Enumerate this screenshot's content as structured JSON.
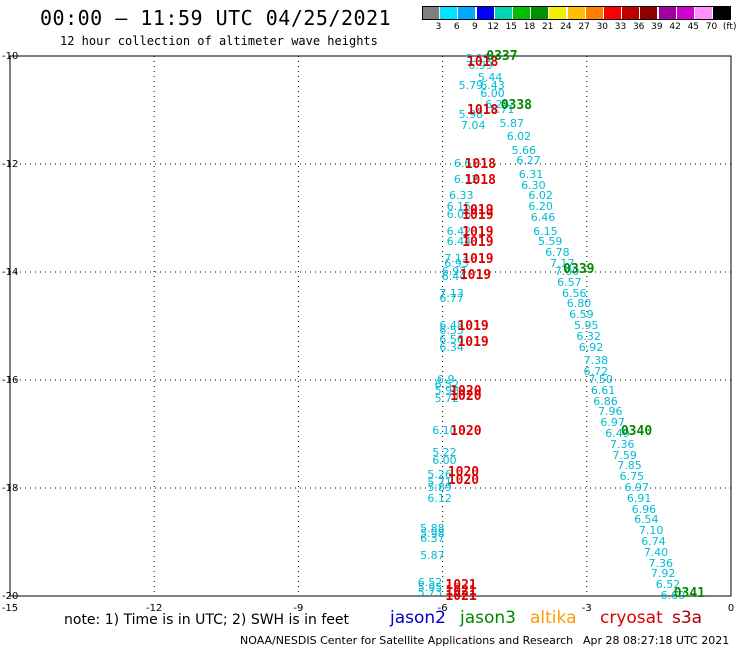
{
  "header": {
    "title": "00:00 – 11:59 UTC 04/25/2021",
    "subtitle": "12 hour collection of altimeter wave heights"
  },
  "colorbar": {
    "labels": [
      "3",
      "6",
      "9",
      "12",
      "15",
      "18",
      "21",
      "24",
      "27",
      "30",
      "33",
      "36",
      "39",
      "42",
      "45",
      "70",
      "(ft)"
    ],
    "colors": [
      "#808080",
      "#00e5ff",
      "#00a8ff",
      "#0000ff",
      "#00d7b0",
      "#00c000",
      "#009000",
      "#f0f000",
      "#ffc000",
      "#ff8000",
      "#ff0000",
      "#c00000",
      "#900000",
      "#a000a0",
      "#d000d0",
      "#ff90ff",
      "#000000"
    ]
  },
  "footer": {
    "note": "note: 1) Time is in UTC; 2) SWH is in feet",
    "satellites": [
      {
        "name": "jason2",
        "color": "#0000cc"
      },
      {
        "name": "jason3",
        "color": "#008800"
      },
      {
        "name": "altika",
        "color": "#ff9900"
      },
      {
        "name": "cryosat",
        "color": "#dd0000"
      },
      {
        "name": "s3a",
        "color": "#aa0000"
      }
    ],
    "credit": "NOAA/NESDIS Center for Satellite Applications and Research",
    "timestamp": "Apr 28 08:27:18 UTC 2021"
  },
  "chart_data": {
    "type": "scatter",
    "title": "00:00 – 11:59 UTC 04/25/2021",
    "xlabel": "",
    "ylabel": "",
    "xlim": [
      -15,
      0
    ],
    "ylim": [
      -20,
      -10
    ],
    "x_ticks": [
      -15,
      -12,
      -9,
      -6,
      -3,
      0
    ],
    "y_ticks": [
      -10,
      -12,
      -14,
      -16,
      -18,
      -20
    ],
    "x_tick_labels": [
      "-15",
      "-12",
      "-9",
      "-6",
      "-3",
      "0"
    ],
    "y_tick_labels": [
      "-10",
      "-12",
      "-14",
      "-16",
      "-18",
      "-20"
    ],
    "grid": true,
    "track_cryosat": {
      "color": "#dd0000",
      "points": [
        {
          "x": -5.2,
          "y": -10.12,
          "v": "1018"
        },
        {
          "x": -5.2,
          "y": -11.0,
          "v": "1018"
        },
        {
          "x": -5.25,
          "y": -12.0,
          "v": "1018"
        },
        {
          "x": -5.25,
          "y": -12.3,
          "v": "1018"
        },
        {
          "x": -5.3,
          "y": -12.85,
          "v": "1019"
        },
        {
          "x": -5.3,
          "y": -12.95,
          "v": "1019"
        },
        {
          "x": -5.3,
          "y": -13.25,
          "v": "1019"
        },
        {
          "x": -5.3,
          "y": -13.45,
          "v": "1019"
        },
        {
          "x": -5.3,
          "y": -13.75,
          "v": "1019"
        },
        {
          "x": -5.35,
          "y": -14.05,
          "v": "1019"
        },
        {
          "x": -5.4,
          "y": -15.0,
          "v": "1019"
        },
        {
          "x": -5.4,
          "y": -15.3,
          "v": "1019"
        },
        {
          "x": -5.55,
          "y": -16.2,
          "v": "1020"
        },
        {
          "x": -5.55,
          "y": -16.3,
          "v": "1020"
        },
        {
          "x": -5.55,
          "y": -16.95,
          "v": "1020"
        },
        {
          "x": -5.6,
          "y": -17.7,
          "v": "1020"
        },
        {
          "x": -5.6,
          "y": -17.85,
          "v": "1020"
        },
        {
          "x": -5.65,
          "y": -19.8,
          "v": "1021"
        },
        {
          "x": -5.65,
          "y": -19.9,
          "v": "1021"
        },
        {
          "x": -5.65,
          "y": -20.0,
          "v": "1021"
        }
      ]
    },
    "track_jason3": {
      "color": "#008800",
      "points": [
        {
          "x": -4.8,
          "y": -10.0,
          "v": "0337"
        },
        {
          "x": -4.5,
          "y": -10.9,
          "v": "0338"
        },
        {
          "x": -3.2,
          "y": -13.95,
          "v": "0339"
        },
        {
          "x": -2.0,
          "y": -16.95,
          "v": "0340"
        },
        {
          "x": -0.9,
          "y": -19.95,
          "v": "0341"
        }
      ]
    },
    "swh_descending": {
      "color": "#00bcd4",
      "points": [
        {
          "x": -5.35,
          "y": -10.05,
          "v": "5.13"
        },
        {
          "x": -5.3,
          "y": -10.18,
          "v": "6.99"
        },
        {
          "x": -5.1,
          "y": -10.4,
          "v": "5.44"
        },
        {
          "x": -5.05,
          "y": -10.55,
          "v": "6.43"
        },
        {
          "x": -5.05,
          "y": -10.7,
          "v": "6.00"
        },
        {
          "x": -4.95,
          "y": -10.9,
          "v": "6.25"
        },
        {
          "x": -4.85,
          "y": -11.0,
          "v": "5.71"
        },
        {
          "x": -4.65,
          "y": -11.25,
          "v": "5.87"
        },
        {
          "x": -4.5,
          "y": -11.5,
          "v": "6.02"
        },
        {
          "x": -4.4,
          "y": -11.75,
          "v": "5.66"
        },
        {
          "x": -4.3,
          "y": -11.95,
          "v": "6.27"
        },
        {
          "x": -4.25,
          "y": -12.2,
          "v": "6.31"
        },
        {
          "x": -4.2,
          "y": -12.4,
          "v": "6.30"
        },
        {
          "x": -4.05,
          "y": -12.6,
          "v": "6.02"
        },
        {
          "x": -4.05,
          "y": -12.8,
          "v": "6.20"
        },
        {
          "x": -4.0,
          "y": -13.0,
          "v": "6.46"
        },
        {
          "x": -3.95,
          "y": -13.25,
          "v": "6.15"
        },
        {
          "x": -3.85,
          "y": -13.45,
          "v": "5.59"
        },
        {
          "x": -3.7,
          "y": -13.65,
          "v": "6.78"
        },
        {
          "x": -3.6,
          "y": -13.85,
          "v": "7.17"
        },
        {
          "x": -3.5,
          "y": -14.0,
          "v": "7.00"
        },
        {
          "x": -3.45,
          "y": -14.2,
          "v": "6.57"
        },
        {
          "x": -3.35,
          "y": -14.4,
          "v": "6.56"
        },
        {
          "x": -3.25,
          "y": -14.6,
          "v": "6.80"
        },
        {
          "x": -3.2,
          "y": -14.8,
          "v": "6.59"
        },
        {
          "x": -3.1,
          "y": -15.0,
          "v": "5.95"
        },
        {
          "x": -3.05,
          "y": -15.2,
          "v": "6.32"
        },
        {
          "x": -3.0,
          "y": -15.4,
          "v": "6.92"
        },
        {
          "x": -2.9,
          "y": -15.65,
          "v": "7.38"
        },
        {
          "x": -2.9,
          "y": -15.85,
          "v": "6.72"
        },
        {
          "x": -2.8,
          "y": -16.0,
          "v": "7.50"
        },
        {
          "x": -2.75,
          "y": -16.2,
          "v": "6.61"
        },
        {
          "x": -2.7,
          "y": -16.4,
          "v": "6.86"
        },
        {
          "x": -2.6,
          "y": -16.6,
          "v": "7.96"
        },
        {
          "x": -2.55,
          "y": -16.8,
          "v": "6.97"
        },
        {
          "x": -2.45,
          "y": -17.0,
          "v": "6.49"
        },
        {
          "x": -2.35,
          "y": -17.2,
          "v": "7.36"
        },
        {
          "x": -2.3,
          "y": -17.4,
          "v": "7.59"
        },
        {
          "x": -2.2,
          "y": -17.6,
          "v": "7.85"
        },
        {
          "x": -2.15,
          "y": -17.8,
          "v": "6.75"
        },
        {
          "x": -2.05,
          "y": -18.0,
          "v": "6.97"
        },
        {
          "x": -2.0,
          "y": -18.2,
          "v": "6.91"
        },
        {
          "x": -1.9,
          "y": -18.4,
          "v": "6.96"
        },
        {
          "x": -1.85,
          "y": -18.6,
          "v": "6.54"
        },
        {
          "x": -1.75,
          "y": -18.8,
          "v": "7.10"
        },
        {
          "x": -1.7,
          "y": -19.0,
          "v": "6.74"
        },
        {
          "x": -1.65,
          "y": -19.2,
          "v": "7.40"
        },
        {
          "x": -1.55,
          "y": -19.4,
          "v": "7.36"
        },
        {
          "x": -1.5,
          "y": -19.6,
          "v": "7.92"
        },
        {
          "x": -1.4,
          "y": -19.8,
          "v": "6.52"
        },
        {
          "x": -1.3,
          "y": -20.0,
          "v": "6.60"
        }
      ]
    },
    "swh_cryosat_track": {
      "color": "#00bcd4",
      "points": [
        {
          "x": -5.5,
          "y": -10.55,
          "v": "5.79"
        },
        {
          "x": -5.5,
          "y": -11.1,
          "v": "5.98"
        },
        {
          "x": -5.45,
          "y": -11.3,
          "v": "7.04"
        },
        {
          "x": -5.6,
          "y": -12.0,
          "v": "6.61"
        },
        {
          "x": -5.6,
          "y": -12.3,
          "v": "6.12"
        },
        {
          "x": -5.7,
          "y": -12.6,
          "v": "6.33"
        },
        {
          "x": -5.75,
          "y": -12.8,
          "v": "6.15"
        },
        {
          "x": -5.75,
          "y": -12.95,
          "v": "6.06"
        },
        {
          "x": -5.75,
          "y": -13.25,
          "v": "6.42"
        },
        {
          "x": -5.75,
          "y": -13.45,
          "v": "6.44"
        },
        {
          "x": -5.8,
          "y": -13.75,
          "v": "7.13"
        },
        {
          "x": -5.8,
          "y": -13.85,
          "v": "6.93"
        },
        {
          "x": -5.85,
          "y": -14.0,
          "v": "6.97"
        },
        {
          "x": -5.85,
          "y": -14.1,
          "v": "6.44"
        },
        {
          "x": -5.9,
          "y": -14.4,
          "v": "7.13"
        },
        {
          "x": -5.9,
          "y": -14.5,
          "v": "6.77"
        },
        {
          "x": -5.9,
          "y": -15.0,
          "v": "6.48"
        },
        {
          "x": -5.9,
          "y": -15.1,
          "v": "6.55"
        },
        {
          "x": -5.9,
          "y": -15.25,
          "v": "6.56"
        },
        {
          "x": -5.9,
          "y": -15.4,
          "v": "6.34"
        },
        {
          "x": -5.95,
          "y": -16.0,
          "v": "6.9"
        },
        {
          "x": -6.0,
          "y": -16.1,
          "v": "6.52"
        },
        {
          "x": -6.0,
          "y": -16.2,
          "v": "5.98"
        },
        {
          "x": -6.0,
          "y": -16.35,
          "v": "5.72"
        },
        {
          "x": -6.05,
          "y": -16.95,
          "v": "6.10"
        },
        {
          "x": -6.05,
          "y": -17.35,
          "v": "5.22"
        },
        {
          "x": -6.05,
          "y": -17.5,
          "v": "6.00"
        },
        {
          "x": -6.15,
          "y": -17.75,
          "v": "5.26"
        },
        {
          "x": -6.15,
          "y": -17.9,
          "v": "5.71"
        },
        {
          "x": -6.15,
          "y": -18.0,
          "v": "5.89"
        },
        {
          "x": -6.15,
          "y": -18.2,
          "v": "6.12"
        },
        {
          "x": -6.3,
          "y": -18.75,
          "v": "5.88"
        },
        {
          "x": -6.3,
          "y": -18.85,
          "v": "5.98"
        },
        {
          "x": -6.3,
          "y": -18.95,
          "v": "6.37"
        },
        {
          "x": -6.3,
          "y": -19.25,
          "v": "5.87"
        },
        {
          "x": -6.35,
          "y": -19.75,
          "v": "6.52"
        },
        {
          "x": -6.35,
          "y": -19.85,
          "v": "5.95"
        },
        {
          "x": -6.35,
          "y": -19.95,
          "v": "5.73"
        }
      ]
    }
  }
}
